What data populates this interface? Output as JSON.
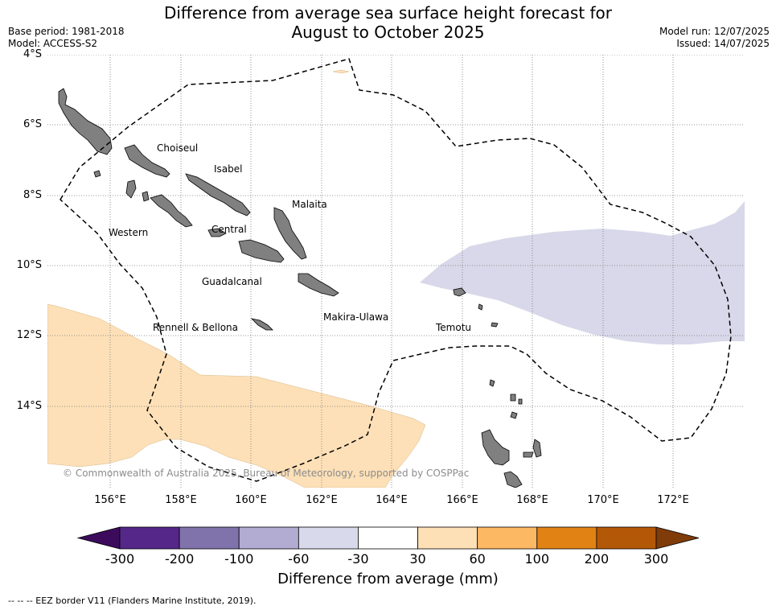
{
  "header": {
    "title_line1": "Difference from average sea surface height forecast for",
    "title_line2": "August to October 2025",
    "base_period": "Base period: 1981-2018",
    "model": "Model: ACCESS-S2",
    "model_run": "Model run: 12/07/2025",
    "issued": "Issued: 14/07/2025"
  },
  "map": {
    "lat_labels": [
      "4°S",
      "6°S",
      "8°S",
      "10°S",
      "12°S",
      "14°S"
    ],
    "lon_labels": [
      "156°E",
      "158°E",
      "160°E",
      "162°E",
      "164°E",
      "166°E",
      "168°E",
      "170°E",
      "172°E"
    ],
    "places": {
      "choiseul": "Choiseul",
      "isabel": "Isabel",
      "malaita": "Malaita",
      "western": "Western",
      "central": "Central",
      "guadalcanal": "Guadalcanal",
      "makira_ulawa": "Makira-Ulawa",
      "rennell_bellona": "Rennell & Bellona",
      "temotu": "Temotu"
    },
    "copyright": "© Commonwealth of Australia 2025, Bureau of Meteorology, supported by COSPPac",
    "colors": {
      "land": "#808080",
      "anomaly_negative": "#d8d8ea",
      "anomaly_positive": "#fde0b7",
      "eez_border": "#000000",
      "gridline": "#777777"
    }
  },
  "colorbar": {
    "ticks": [
      "-300",
      "-200",
      "-100",
      "-60",
      "-30",
      "30",
      "60",
      "100",
      "200",
      "300"
    ],
    "colors": [
      "#3d0b5c",
      "#542788",
      "#8073ac",
      "#b2abd2",
      "#d8daeb",
      "#ffffff",
      "#fee0b6",
      "#fdb863",
      "#e08214",
      "#b35806",
      "#7f3b08"
    ],
    "label": "Difference from average (mm)"
  },
  "legend": {
    "eez": "--  --  -- EEZ border V11 (Flanders Marine Institute, 2019)."
  }
}
